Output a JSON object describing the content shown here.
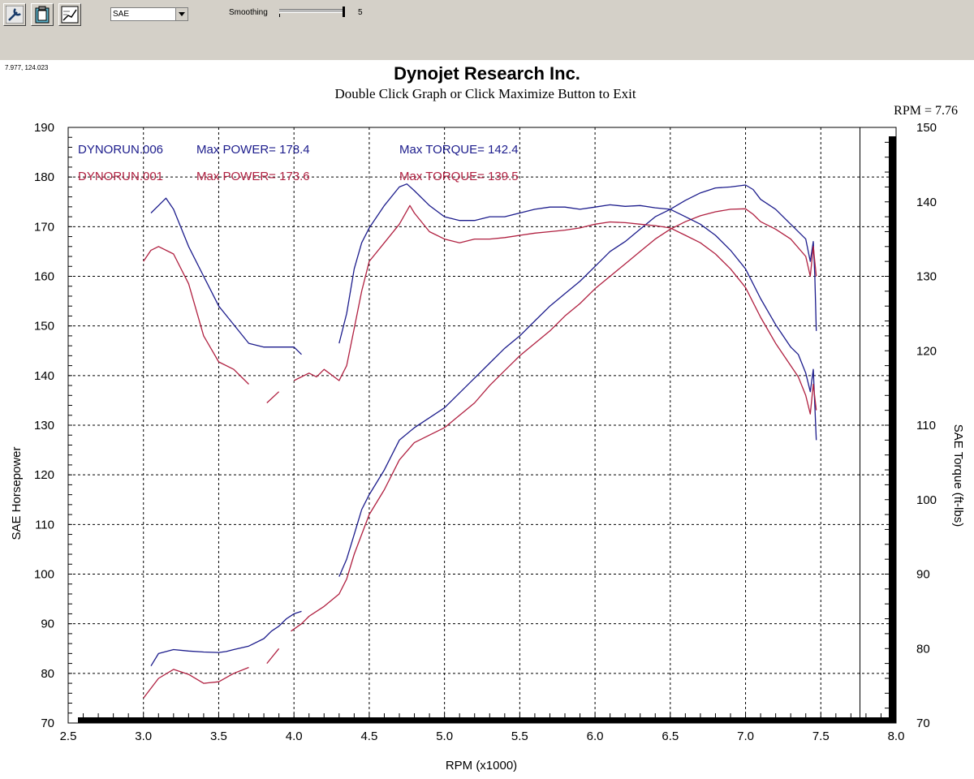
{
  "toolbar": {
    "buttons": [
      {
        "icon": "wrench-icon"
      },
      {
        "icon": "clipboard-icon"
      },
      {
        "icon": "graph-icon"
      }
    ],
    "mode_value": "SAE",
    "smoothing_label": "Smoothing",
    "smoothing_value": "5"
  },
  "coordinate_readout": "7.977, 124.023",
  "chart_data": {
    "type": "line",
    "title": "Dynojet Research Inc.",
    "subtitle": "Double Click Graph or Click Maximize Button to Exit",
    "cursor_readout": "RPM = 7.76",
    "cursor_x": 7.76,
    "xlabel": "RPM (x1000)",
    "ylabel_left": "SAE Horsepower",
    "ylabel_right": "SAE Torque (ft-lbs)",
    "xlim": [
      2.5,
      8.0
    ],
    "ylim_left": [
      70,
      190
    ],
    "ylim_right": [
      70,
      150
    ],
    "x_ticks": [
      "2.5",
      "3.0",
      "3.5",
      "4.0",
      "4.5",
      "5.0",
      "5.5",
      "6.0",
      "6.5",
      "7.0",
      "7.5",
      "8.0"
    ],
    "y_ticks_left": [
      "70",
      "80",
      "90",
      "100",
      "110",
      "120",
      "130",
      "140",
      "150",
      "160",
      "170",
      "180",
      "190"
    ],
    "y_ticks_right": [
      "70",
      "80",
      "90",
      "100",
      "110",
      "120",
      "130",
      "140",
      "150"
    ],
    "grid": true,
    "legend": [
      {
        "run": "DYNORUN.006",
        "power_label": "Max POWER= 178.4",
        "torque_label": "Max TORQUE= 142.4",
        "color": "#1c1c8c"
      },
      {
        "run": "DYNORUN.001",
        "power_label": "Max POWER= 173.6",
        "torque_label": "Max TORQUE= 139.5",
        "color": "#b02040"
      }
    ],
    "series": [
      {
        "name": "DYNORUN.006",
        "quantity": "power",
        "axis": "left",
        "color": "#1c1c8c",
        "segments": [
          [
            [
              3.05,
              81.5
            ],
            [
              3.1,
              84
            ],
            [
              3.2,
              84.8
            ],
            [
              3.3,
              84.5
            ],
            [
              3.4,
              84.3
            ],
            [
              3.5,
              84.2
            ],
            [
              3.55,
              84.4
            ],
            [
              3.6,
              84.8
            ],
            [
              3.7,
              85.5
            ],
            [
              3.8,
              87
            ],
            [
              3.85,
              88.5
            ],
            [
              3.9,
              89.5
            ],
            [
              3.95,
              91
            ],
            [
              4.0,
              92
            ],
            [
              4.05,
              92.5
            ]
          ],
          [
            [
              4.3,
              99.5
            ],
            [
              4.35,
              103
            ],
            [
              4.4,
              108
            ],
            [
              4.45,
              113
            ],
            [
              4.5,
              116
            ],
            [
              4.6,
              121
            ],
            [
              4.7,
              127
            ],
            [
              4.8,
              129.5
            ],
            [
              4.9,
              131.5
            ],
            [
              5.0,
              133.5
            ],
            [
              5.1,
              136.5
            ],
            [
              5.2,
              139.5
            ],
            [
              5.3,
              142.5
            ],
            [
              5.4,
              145.5
            ],
            [
              5.5,
              148
            ],
            [
              5.6,
              151
            ],
            [
              5.7,
              154
            ],
            [
              5.8,
              156.5
            ],
            [
              5.9,
              159
            ],
            [
              6.0,
              162
            ],
            [
              6.1,
              165
            ],
            [
              6.2,
              167
            ],
            [
              6.3,
              169.5
            ],
            [
              6.4,
              172
            ],
            [
              6.5,
              173.5
            ],
            [
              6.6,
              175.3
            ],
            [
              6.7,
              176.8
            ],
            [
              6.8,
              177.8
            ],
            [
              6.9,
              178
            ],
            [
              7.0,
              178.4
            ],
            [
              7.05,
              177.5
            ],
            [
              7.1,
              175.5
            ],
            [
              7.2,
              173.5
            ],
            [
              7.3,
              170.5
            ],
            [
              7.4,
              167.5
            ],
            [
              7.43,
              163
            ],
            [
              7.45,
              167
            ],
            [
              7.46,
              160
            ],
            [
              7.47,
              149
            ]
          ]
        ]
      },
      {
        "name": "DYNORUN.001",
        "quantity": "power",
        "axis": "left",
        "color": "#b02040",
        "segments": [
          [
            [
              3.0,
              75
            ],
            [
              3.1,
              79
            ],
            [
              3.2,
              80.8
            ],
            [
              3.3,
              79.8
            ],
            [
              3.4,
              78
            ],
            [
              3.5,
              78.3
            ],
            [
              3.6,
              80
            ],
            [
              3.7,
              81.2
            ]
          ],
          [
            [
              3.82,
              82
            ],
            [
              3.9,
              85
            ]
          ],
          [
            [
              3.98,
              88.5
            ],
            [
              4.05,
              90
            ],
            [
              4.1,
              91.5
            ],
            [
              4.2,
              93.5
            ],
            [
              4.3,
              96
            ],
            [
              4.35,
              99
            ],
            [
              4.4,
              104
            ],
            [
              4.45,
              108
            ],
            [
              4.5,
              112
            ],
            [
              4.6,
              117
            ],
            [
              4.7,
              123
            ],
            [
              4.8,
              126.5
            ],
            [
              4.9,
              128
            ],
            [
              5.0,
              129.5
            ],
            [
              5.1,
              132
            ],
            [
              5.2,
              134.5
            ],
            [
              5.3,
              138
            ],
            [
              5.4,
              141
            ],
            [
              5.5,
              144
            ],
            [
              5.6,
              146.5
            ],
            [
              5.7,
              149
            ],
            [
              5.8,
              152
            ],
            [
              5.9,
              154.5
            ],
            [
              6.0,
              157.5
            ],
            [
              6.1,
              160
            ],
            [
              6.2,
              162.5
            ],
            [
              6.3,
              165
            ],
            [
              6.4,
              167.5
            ],
            [
              6.5,
              169.5
            ],
            [
              6.6,
              171
            ],
            [
              6.7,
              172.2
            ],
            [
              6.8,
              173
            ],
            [
              6.9,
              173.5
            ],
            [
              7.0,
              173.6
            ],
            [
              7.05,
              172.5
            ],
            [
              7.1,
              171
            ],
            [
              7.2,
              169.5
            ],
            [
              7.3,
              167.5
            ],
            [
              7.4,
              164
            ],
            [
              7.43,
              160
            ],
            [
              7.45,
              166
            ],
            [
              7.47,
              160
            ]
          ]
        ]
      },
      {
        "name": "DYNORUN.006",
        "quantity": "torque",
        "axis": "right",
        "color": "#1c1c8c",
        "segments": [
          [
            [
              3.05,
              138.5
            ],
            [
              3.1,
              139.5
            ],
            [
              3.15,
              140.5
            ],
            [
              3.2,
              139
            ],
            [
              3.3,
              134
            ],
            [
              3.4,
              130
            ],
            [
              3.5,
              126
            ],
            [
              3.6,
              123.5
            ],
            [
              3.7,
              121
            ],
            [
              3.8,
              120.5
            ],
            [
              3.9,
              120.5
            ],
            [
              4.0,
              120.5
            ],
            [
              4.05,
              119.5
            ]
          ],
          [
            [
              4.3,
              121
            ],
            [
              4.35,
              125
            ],
            [
              4.4,
              131
            ],
            [
              4.45,
              134.5
            ],
            [
              4.5,
              136.5
            ],
            [
              4.6,
              139.5
            ],
            [
              4.7,
              142
            ],
            [
              4.75,
              142.4
            ],
            [
              4.8,
              141.5
            ],
            [
              4.9,
              139.5
            ],
            [
              5.0,
              138
            ],
            [
              5.1,
              137.5
            ],
            [
              5.2,
              137.5
            ],
            [
              5.3,
              138
            ],
            [
              5.4,
              138
            ],
            [
              5.5,
              138.5
            ],
            [
              5.6,
              139
            ],
            [
              5.7,
              139.3
            ],
            [
              5.8,
              139.3
            ],
            [
              5.9,
              139
            ],
            [
              6.0,
              139.3
            ],
            [
              6.1,
              139.6
            ],
            [
              6.2,
              139.4
            ],
            [
              6.3,
              139.5
            ],
            [
              6.4,
              139.2
            ],
            [
              6.5,
              139
            ],
            [
              6.6,
              138
            ],
            [
              6.7,
              137
            ],
            [
              6.8,
              135.5
            ],
            [
              6.9,
              133.5
            ],
            [
              7.0,
              131
            ],
            [
              7.1,
              127
            ],
            [
              7.2,
              123.5
            ],
            [
              7.3,
              120.5
            ],
            [
              7.35,
              119.5
            ],
            [
              7.4,
              117
            ],
            [
              7.43,
              114.5
            ],
            [
              7.45,
              117.5
            ],
            [
              7.47,
              108
            ]
          ]
        ]
      },
      {
        "name": "DYNORUN.001",
        "quantity": "torque",
        "axis": "right",
        "color": "#b02040",
        "segments": [
          [
            [
              3.0,
              132
            ],
            [
              3.05,
              133.5
            ],
            [
              3.1,
              134
            ],
            [
              3.2,
              133
            ],
            [
              3.3,
              129
            ],
            [
              3.4,
              122
            ],
            [
              3.5,
              118.5
            ],
            [
              3.6,
              117.5
            ],
            [
              3.7,
              115.5
            ]
          ],
          [
            [
              3.82,
              113
            ],
            [
              3.9,
              114.5
            ]
          ],
          [
            [
              4.0,
              116
            ],
            [
              4.1,
              117
            ],
            [
              4.15,
              116.5
            ],
            [
              4.2,
              117.5
            ],
            [
              4.3,
              116
            ],
            [
              4.35,
              118
            ],
            [
              4.4,
              123
            ],
            [
              4.45,
              128
            ],
            [
              4.5,
              132
            ],
            [
              4.6,
              134.5
            ],
            [
              4.7,
              137
            ],
            [
              4.77,
              139.5
            ],
            [
              4.8,
              138.5
            ],
            [
              4.9,
              136
            ],
            [
              5.0,
              135
            ],
            [
              5.1,
              134.5
            ],
            [
              5.2,
              135
            ],
            [
              5.3,
              135
            ],
            [
              5.4,
              135.2
            ],
            [
              5.5,
              135.5
            ],
            [
              5.6,
              135.8
            ],
            [
              5.7,
              136
            ],
            [
              5.8,
              136.2
            ],
            [
              5.9,
              136.5
            ],
            [
              6.0,
              137
            ],
            [
              6.1,
              137.3
            ],
            [
              6.2,
              137.2
            ],
            [
              6.3,
              137
            ],
            [
              6.4,
              136.8
            ],
            [
              6.5,
              136.5
            ],
            [
              6.6,
              135.5
            ],
            [
              6.7,
              134.5
            ],
            [
              6.8,
              133
            ],
            [
              6.9,
              131
            ],
            [
              7.0,
              128.5
            ],
            [
              7.1,
              124.5
            ],
            [
              7.2,
              121
            ],
            [
              7.3,
              118
            ],
            [
              7.35,
              116.5
            ],
            [
              7.4,
              114
            ],
            [
              7.43,
              111.5
            ],
            [
              7.45,
              115.5
            ],
            [
              7.47,
              112
            ]
          ]
        ]
      }
    ]
  }
}
